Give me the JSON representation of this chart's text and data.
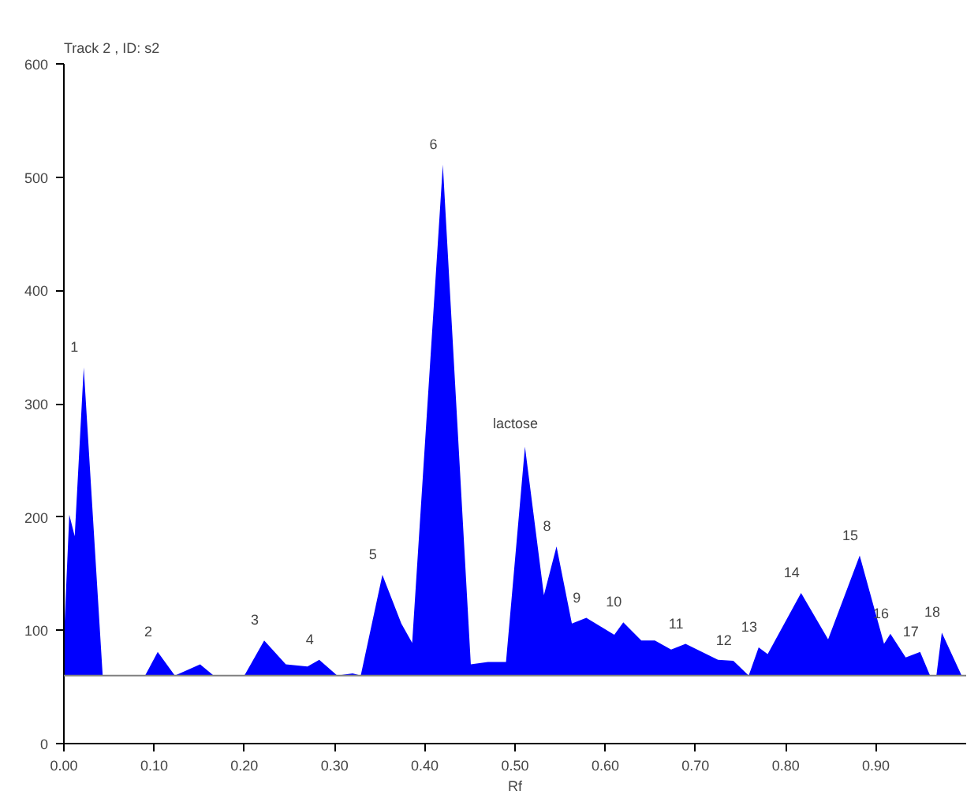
{
  "chart_data": {
    "type": "area",
    "title": "Track  2 , ID: s2",
    "xlabel": "Rf",
    "x": [
      0.0,
      0.006,
      0.012,
      0.022,
      0.043,
      0.09,
      0.104,
      0.123,
      0.151,
      0.166,
      0.2,
      0.222,
      0.246,
      0.27,
      0.283,
      0.303,
      0.32,
      0.329,
      0.353,
      0.374,
      0.386,
      0.42,
      0.451,
      0.47,
      0.49,
      0.511,
      0.532,
      0.546,
      0.563,
      0.579,
      0.61,
      0.62,
      0.64,
      0.655,
      0.673,
      0.689,
      0.725,
      0.742,
      0.759,
      0.77,
      0.78,
      0.817,
      0.847,
      0.882,
      0.909,
      0.916,
      0.933,
      0.949,
      0.96,
      0.967,
      0.973,
      0.995
    ],
    "series": [
      {
        "color": "#0000ff",
        "values": [
          92,
          202,
          183,
          332,
          60,
          60,
          81,
          60,
          70,
          60,
          60,
          91,
          70,
          68,
          74,
          60,
          62,
          60,
          149,
          106,
          89,
          511,
          70,
          72,
          72,
          262,
          131,
          174,
          106,
          111,
          96,
          107,
          91,
          91,
          83,
          88,
          74,
          73,
          60,
          85,
          79,
          133,
          92,
          166,
          88,
          97,
          76,
          81,
          60,
          60,
          98,
          60
        ]
      }
    ],
    "xlim": [
      0,
      1.0
    ],
    "ylim": [
      0,
      600
    ],
    "xticks": [
      {
        "value": 0,
        "label": "0.00"
      },
      {
        "value": 0.1,
        "label": "0.10"
      },
      {
        "value": 0.2,
        "label": "0.20"
      },
      {
        "value": 0.3,
        "label": "0.30"
      },
      {
        "value": 0.4,
        "label": "0.40"
      },
      {
        "value": 0.5,
        "label": "0.50"
      },
      {
        "value": 0.6,
        "label": "0.60"
      },
      {
        "value": 0.7,
        "label": "0.70"
      },
      {
        "value": 0.8,
        "label": "0.80"
      },
      {
        "value": 0.9,
        "label": "0.90"
      }
    ],
    "yticks": [
      0,
      100,
      200,
      300,
      400,
      500,
      600
    ],
    "ref_lines": [
      {
        "axis": "y",
        "value": 60,
        "color": "#808080"
      }
    ],
    "grid": false,
    "annotations": [
      {
        "text": "1",
        "x": 0.022,
        "y": 332
      },
      {
        "text": "2",
        "x": 0.104,
        "y": 81
      },
      {
        "text": "3",
        "x": 0.222,
        "y": 91
      },
      {
        "text": "4",
        "x": 0.283,
        "y": 74
      },
      {
        "text": "5",
        "x": 0.353,
        "y": 149
      },
      {
        "text": "6",
        "x": 0.42,
        "y": 511
      },
      {
        "text": "lactose",
        "x": 0.511,
        "y": 262
      },
      {
        "text": "8",
        "x": 0.546,
        "y": 174
      },
      {
        "text": "9",
        "x": 0.579,
        "y": 111
      },
      {
        "text": "10",
        "x": 0.62,
        "y": 107
      },
      {
        "text": "11",
        "x": 0.689,
        "y": 88
      },
      {
        "text": "12",
        "x": 0.742,
        "y": 73
      },
      {
        "text": "13",
        "x": 0.77,
        "y": 85
      },
      {
        "text": "14",
        "x": 0.817,
        "y": 133
      },
      {
        "text": "15",
        "x": 0.882,
        "y": 166
      },
      {
        "text": "16",
        "x": 0.916,
        "y": 97
      },
      {
        "text": "17",
        "x": 0.949,
        "y": 81
      },
      {
        "text": "18",
        "x": 0.973,
        "y": 98
      }
    ]
  }
}
